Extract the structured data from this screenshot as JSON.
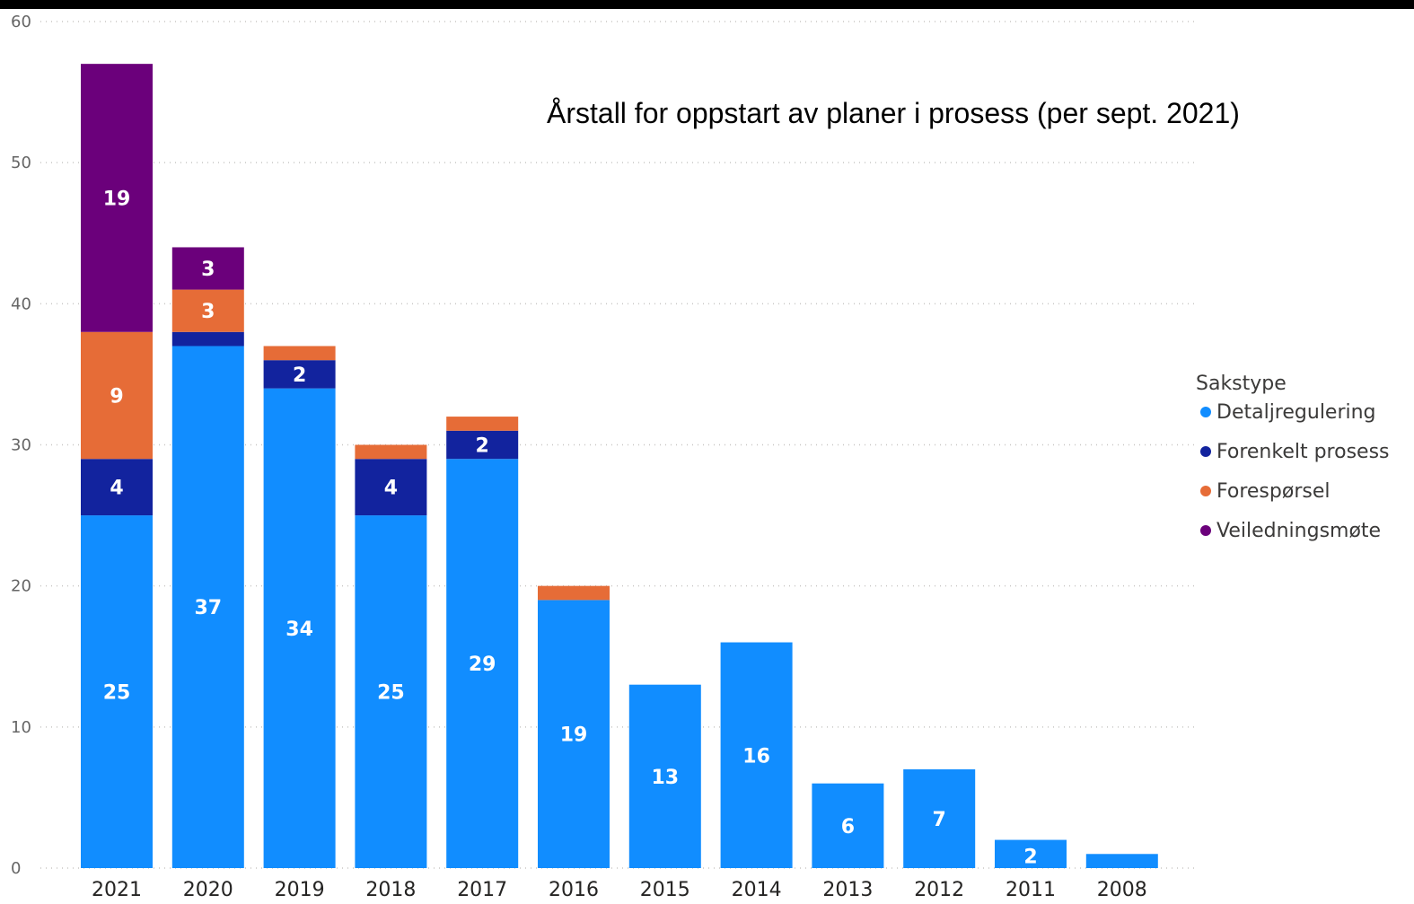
{
  "chart_data": {
    "type": "bar",
    "stacked": true,
    "title": "Årstall for oppstart av planer i prosess (per sept. 2021)",
    "xlabel": "",
    "ylabel": "",
    "ylim": [
      0,
      60
    ],
    "yticks": [
      0,
      10,
      20,
      30,
      40,
      50,
      60
    ],
    "grid": true,
    "legend_title": "Sakstype",
    "legend_position": "right",
    "categories": [
      "2021",
      "2020",
      "2019",
      "2018",
      "2017",
      "2016",
      "2015",
      "2014",
      "2013",
      "2012",
      "2011",
      "2008"
    ],
    "series": [
      {
        "name": "Detaljregulering",
        "color": "#118dff",
        "values": [
          25,
          37,
          34,
          25,
          29,
          19,
          13,
          16,
          6,
          7,
          2,
          1
        ]
      },
      {
        "name": "Forenkelt prosess",
        "color": "#12239e",
        "values": [
          4,
          1,
          2,
          4,
          2,
          0,
          0,
          0,
          0,
          0,
          0,
          0
        ]
      },
      {
        "name": "Forespørsel",
        "color": "#e66c37",
        "values": [
          9,
          3,
          1,
          1,
          1,
          1,
          0,
          0,
          0,
          0,
          0,
          0
        ]
      },
      {
        "name": "Veiledningsmøte",
        "color": "#6b007b",
        "values": [
          19,
          3,
          0,
          0,
          0,
          0,
          0,
          0,
          0,
          0,
          0,
          0
        ]
      }
    ],
    "data_labels": [
      [
        "25",
        "37",
        "34",
        "25",
        "29",
        "19",
        "13",
        "16",
        "6",
        "7",
        "2",
        ""
      ],
      [
        "4",
        "",
        "2",
        "4",
        "2",
        "",
        "",
        "",
        "",
        "",
        "",
        ""
      ],
      [
        "9",
        "3",
        "",
        "",
        "",
        "",
        "",
        "",
        "",
        "",
        "",
        ""
      ],
      [
        "19",
        "3",
        "",
        "",
        "",
        "",
        "",
        "",
        "",
        "",
        "",
        ""
      ]
    ]
  }
}
